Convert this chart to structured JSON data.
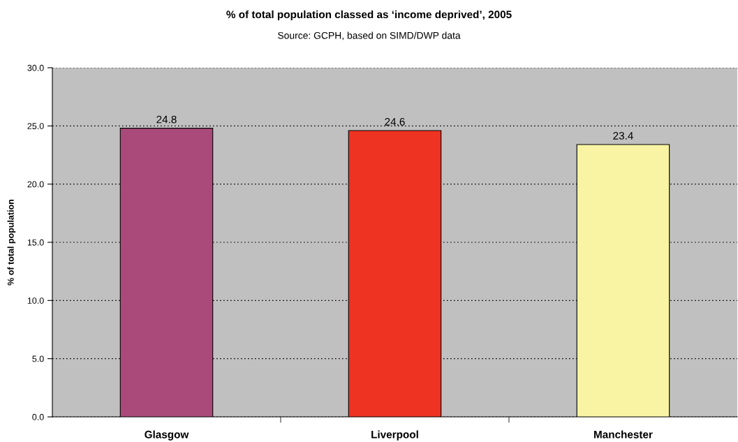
{
  "chart_data": {
    "type": "bar",
    "title": "% of total population classed as ‘income deprived’, 2005",
    "annotations": [
      "Source: GCPH, based on SIMD/DWP data"
    ],
    "ylabel": "% of total population",
    "categories": [
      "Glasgow",
      "Liverpool",
      "Manchester"
    ],
    "values": [
      24.8,
      24.6,
      23.4
    ],
    "colors": [
      "#a94a7a",
      "#ee3322",
      "#f8f4a4"
    ],
    "data_labels": true,
    "ylim": [
      0,
      30
    ],
    "yticks": [
      {
        "value": 0,
        "label": "0.0"
      },
      {
        "value": 5,
        "label": "5.0"
      },
      {
        "value": 10,
        "label": "10.0"
      },
      {
        "value": 15,
        "label": "15.0"
      },
      {
        "value": 20,
        "label": "20.0"
      },
      {
        "value": 25,
        "label": "25.0"
      },
      {
        "value": 30,
        "label": "30.0"
      }
    ],
    "grid": "y",
    "legend": false
  }
}
